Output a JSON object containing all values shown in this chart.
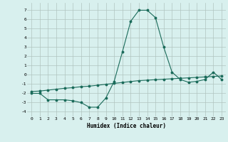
{
  "xlabel": "Humidex (Indice chaleur)",
  "x": [
    0,
    1,
    2,
    3,
    4,
    5,
    6,
    7,
    8,
    9,
    10,
    11,
    12,
    13,
    14,
    15,
    16,
    17,
    18,
    19,
    20,
    21,
    22,
    23
  ],
  "line1": [
    -2.0,
    -2.0,
    -2.7,
    -2.7,
    -2.7,
    -2.8,
    -3.0,
    -3.5,
    -3.5,
    -2.5,
    -0.7,
    2.5,
    5.8,
    7.0,
    7.0,
    6.2,
    3.0,
    0.3,
    -0.5,
    -0.8,
    -0.7,
    -0.5,
    0.3,
    -0.5
  ],
  "line2": [
    -1.8,
    -1.75,
    -1.65,
    -1.55,
    -1.45,
    -1.38,
    -1.28,
    -1.22,
    -1.12,
    -1.02,
    -0.92,
    -0.82,
    -0.72,
    -0.62,
    -0.57,
    -0.52,
    -0.47,
    -0.42,
    -0.37,
    -0.32,
    -0.27,
    -0.22,
    -0.17,
    -0.12
  ],
  "bg_color": "#d8f0ee",
  "line_color": "#1a6b5a",
  "grid_color": "#b0c4c0",
  "ylim": [
    -4.5,
    7.8
  ],
  "yticks": [
    -4,
    -3,
    -2,
    -1,
    0,
    1,
    2,
    3,
    4,
    5,
    6,
    7
  ],
  "xticks": [
    0,
    1,
    2,
    3,
    4,
    5,
    6,
    7,
    8,
    9,
    10,
    11,
    12,
    13,
    14,
    15,
    16,
    17,
    18,
    19,
    20,
    21,
    22,
    23
  ]
}
